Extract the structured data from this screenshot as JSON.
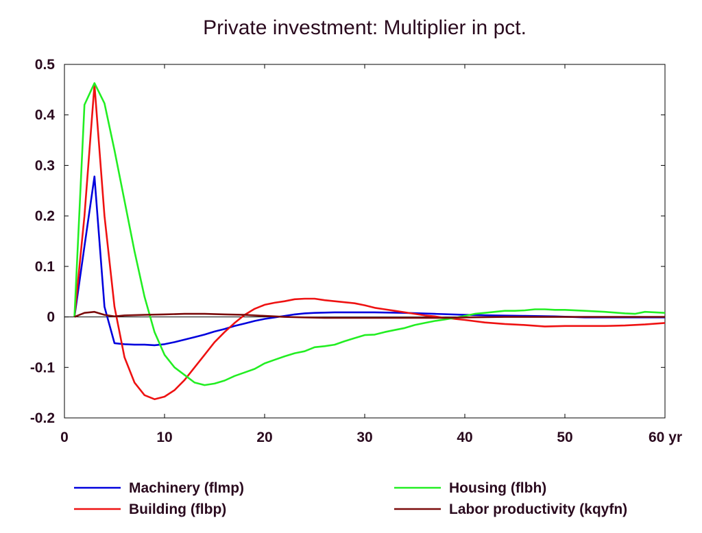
{
  "chart_data": {
    "type": "line",
    "title": "Private investment: Multiplier in pct.",
    "xlabel": "",
    "ylabel": "",
    "x_unit_label": "yr",
    "xlim": [
      0,
      60
    ],
    "ylim": [
      -0.2,
      0.5
    ],
    "x_ticks": [
      0,
      10,
      20,
      30,
      40,
      50,
      60
    ],
    "x_tick_labels": [
      "0",
      "10",
      "20",
      "30",
      "40",
      "50",
      "60 yr"
    ],
    "y_ticks": [
      0.5,
      0.4,
      0.3,
      0.2,
      0.1,
      0,
      -0.1,
      -0.2
    ],
    "y_tick_labels": [
      "0.5",
      "0.4",
      "0.3",
      "0.2",
      "0.1",
      "0",
      "-0.1",
      "-0.2"
    ],
    "grid": false,
    "legend_position": "bottom",
    "series": [
      {
        "name": "Machinery (flmp)",
        "color": "#0000dd",
        "points": [
          [
            1,
            0
          ],
          [
            2,
            0.14
          ],
          [
            3,
            0.278
          ],
          [
            4,
            0.02
          ],
          [
            5,
            -0.052
          ],
          [
            6,
            -0.054
          ],
          [
            7,
            -0.055
          ],
          [
            8,
            -0.055
          ],
          [
            9,
            -0.056
          ],
          [
            10,
            -0.054
          ],
          [
            11,
            -0.05
          ],
          [
            12,
            -0.045
          ],
          [
            13,
            -0.04
          ],
          [
            14,
            -0.035
          ],
          [
            15,
            -0.029
          ],
          [
            16,
            -0.024
          ],
          [
            17,
            -0.018
          ],
          [
            18,
            -0.013
          ],
          [
            19,
            -0.008
          ],
          [
            20,
            -0.004
          ],
          [
            21,
            -0.001
          ],
          [
            22,
            0.002
          ],
          [
            23,
            0.005
          ],
          [
            24,
            0.007
          ],
          [
            25,
            0.008
          ],
          [
            27,
            0.009
          ],
          [
            29,
            0.009
          ],
          [
            31,
            0.009
          ],
          [
            34,
            0.008
          ],
          [
            37,
            0.006
          ],
          [
            40,
            0.004
          ],
          [
            43,
            0.003
          ],
          [
            46,
            0.002
          ],
          [
            49,
            0.001
          ],
          [
            52,
            -0.001
          ],
          [
            55,
            -0.001
          ],
          [
            58,
            -0.001
          ],
          [
            60,
            -0.001
          ]
        ]
      },
      {
        "name": "Building (flbp)",
        "color": "#ee1111",
        "points": [
          [
            1,
            0
          ],
          [
            2,
            0.2
          ],
          [
            3,
            0.46
          ],
          [
            4,
            0.2
          ],
          [
            5,
            0.02
          ],
          [
            6,
            -0.08
          ],
          [
            7,
            -0.13
          ],
          [
            8,
            -0.155
          ],
          [
            9,
            -0.163
          ],
          [
            10,
            -0.158
          ],
          [
            11,
            -0.145
          ],
          [
            12,
            -0.125
          ],
          [
            13,
            -0.1
          ],
          [
            14,
            -0.075
          ],
          [
            15,
            -0.05
          ],
          [
            16,
            -0.03
          ],
          [
            17,
            -0.012
          ],
          [
            18,
            0.004
          ],
          [
            19,
            0.016
          ],
          [
            20,
            0.024
          ],
          [
            21,
            0.028
          ],
          [
            22,
            0.031
          ],
          [
            23,
            0.035
          ],
          [
            24,
            0.036
          ],
          [
            25,
            0.036
          ],
          [
            26,
            0.033
          ],
          [
            27,
            0.031
          ],
          [
            28,
            0.029
          ],
          [
            29,
            0.027
          ],
          [
            30,
            0.023
          ],
          [
            31,
            0.018
          ],
          [
            32,
            0.015
          ],
          [
            33,
            0.012
          ],
          [
            34,
            0.009
          ],
          [
            35,
            0.006
          ],
          [
            36,
            0.003
          ],
          [
            37,
            0.001
          ],
          [
            38,
            -0.002
          ],
          [
            39,
            -0.004
          ],
          [
            40,
            -0.006
          ],
          [
            42,
            -0.011
          ],
          [
            44,
            -0.014
          ],
          [
            46,
            -0.016
          ],
          [
            48,
            -0.019
          ],
          [
            50,
            -0.018
          ],
          [
            52,
            -0.018
          ],
          [
            54,
            -0.018
          ],
          [
            56,
            -0.017
          ],
          [
            58,
            -0.015
          ],
          [
            60,
            -0.012
          ]
        ]
      },
      {
        "name": "Housing (flbh)",
        "color": "#22ee22",
        "points": [
          [
            1,
            0
          ],
          [
            2,
            0.42
          ],
          [
            3,
            0.463
          ],
          [
            4,
            0.423
          ],
          [
            5,
            0.33
          ],
          [
            6,
            0.23
          ],
          [
            7,
            0.13
          ],
          [
            8,
            0.04
          ],
          [
            9,
            -0.03
          ],
          [
            10,
            -0.075
          ],
          [
            11,
            -0.1
          ],
          [
            12,
            -0.115
          ],
          [
            13,
            -0.13
          ],
          [
            14,
            -0.135
          ],
          [
            15,
            -0.132
          ],
          [
            16,
            -0.126
          ],
          [
            17,
            -0.117
          ],
          [
            18,
            -0.11
          ],
          [
            19,
            -0.103
          ],
          [
            20,
            -0.092
          ],
          [
            21,
            -0.085
          ],
          [
            22,
            -0.078
          ],
          [
            23,
            -0.072
          ],
          [
            24,
            -0.068
          ],
          [
            25,
            -0.06
          ],
          [
            26,
            -0.058
          ],
          [
            27,
            -0.055
          ],
          [
            28,
            -0.048
          ],
          [
            29,
            -0.042
          ],
          [
            30,
            -0.036
          ],
          [
            31,
            -0.035
          ],
          [
            32,
            -0.03
          ],
          [
            33,
            -0.026
          ],
          [
            34,
            -0.022
          ],
          [
            35,
            -0.016
          ],
          [
            36,
            -0.012
          ],
          [
            37,
            -0.008
          ],
          [
            38,
            -0.005
          ],
          [
            39,
            -0.002
          ],
          [
            40,
            0.002
          ],
          [
            41,
            0.006
          ],
          [
            42,
            0.008
          ],
          [
            43,
            0.01
          ],
          [
            44,
            0.012
          ],
          [
            45,
            0.012
          ],
          [
            46,
            0.013
          ],
          [
            47,
            0.015
          ],
          [
            48,
            0.015
          ],
          [
            49,
            0.014
          ],
          [
            50,
            0.014
          ],
          [
            52,
            0.012
          ],
          [
            54,
            0.01
          ],
          [
            56,
            0.007
          ],
          [
            57,
            0.006
          ],
          [
            58,
            0.01
          ],
          [
            59,
            0.009
          ],
          [
            60,
            0.008
          ]
        ]
      },
      {
        "name": "Labor productivity (kqyfn)",
        "color": "#7a0a0a",
        "points": [
          [
            1,
            0
          ],
          [
            2,
            0.008
          ],
          [
            3,
            0.01
          ],
          [
            4,
            0.004
          ],
          [
            5,
            0.001
          ],
          [
            6,
            0.003
          ],
          [
            8,
            0.004
          ],
          [
            10,
            0.005
          ],
          [
            12,
            0.006
          ],
          [
            14,
            0.006
          ],
          [
            16,
            0.005
          ],
          [
            18,
            0.004
          ],
          [
            20,
            0.002
          ],
          [
            22,
            0.0
          ],
          [
            24,
            -0.001
          ],
          [
            26,
            -0.002
          ],
          [
            28,
            -0.002
          ],
          [
            30,
            -0.002
          ],
          [
            32,
            -0.002
          ],
          [
            34,
            -0.002
          ],
          [
            36,
            -0.002
          ],
          [
            38,
            -0.002
          ],
          [
            40,
            -0.001
          ],
          [
            44,
            0.0
          ],
          [
            48,
            0.0
          ],
          [
            52,
            0.0
          ],
          [
            56,
            0.0
          ],
          [
            60,
            0.0
          ]
        ]
      }
    ]
  }
}
